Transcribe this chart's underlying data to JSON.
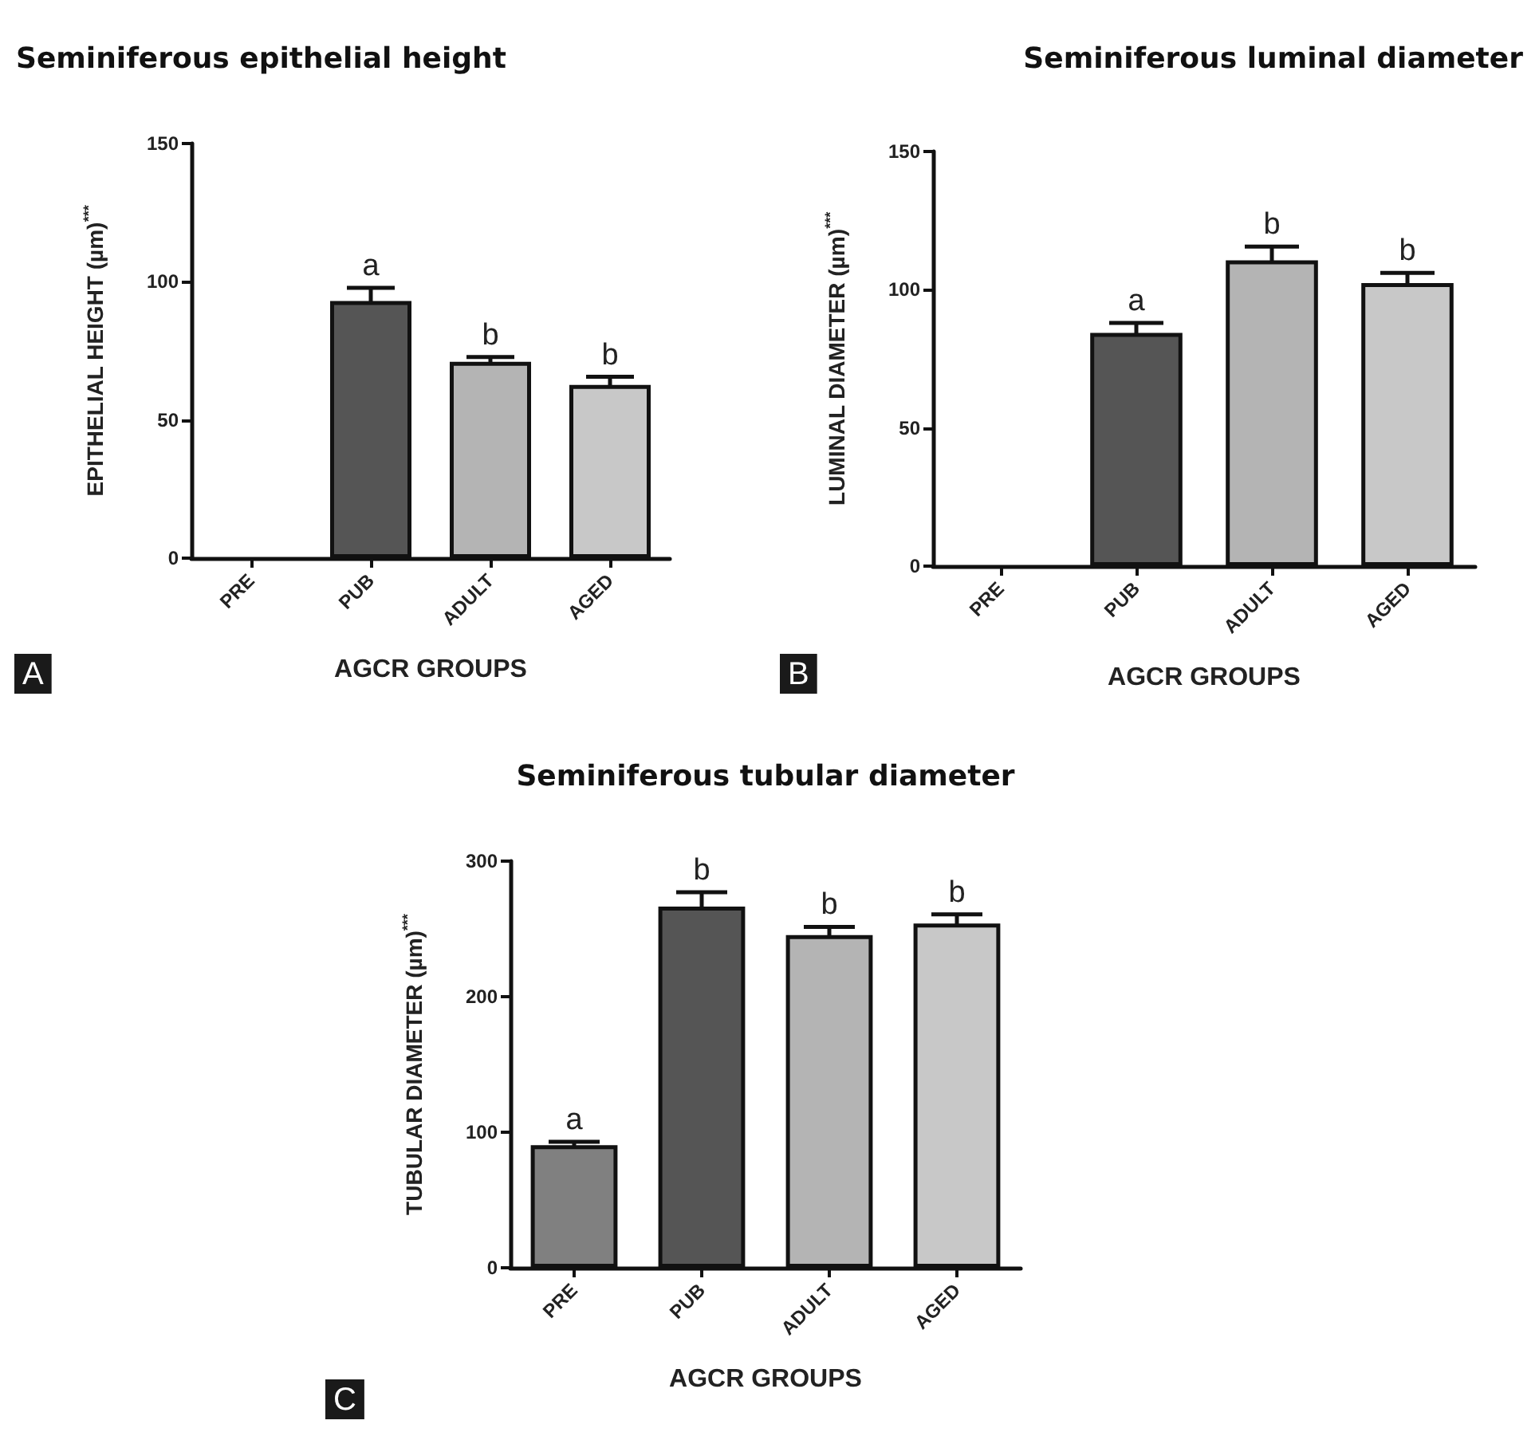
{
  "chart_data": [
    {
      "type": "bar",
      "title": "Seminiferous epithelial height",
      "xlabel": "AGCR GROUPS",
      "ylabel": "EPITHELIAL HEIGHT (µm)$^{***}$",
      "categories": [
        "PRE",
        "PUB",
        "ADULT",
        "AGED"
      ],
      "values": [
        null,
        93,
        71,
        62.7
      ],
      "errors": [
        null,
        4.8,
        1.8,
        2.9
      ],
      "colors": [
        "#808080",
        "#555555",
        "#b4b4b4",
        "#c8c8c8"
      ],
      "ylim": [
        0,
        150
      ],
      "yticks": [
        0,
        50,
        100,
        150
      ],
      "annotations": [
        {
          "text": "a",
          "x": "PUB",
          "y": 97.8
        },
        {
          "text": "b",
          "x": "ADULT",
          "y": 72.8
        },
        {
          "text": "b",
          "x": "AGED",
          "y": 65.6
        },
        "A"
      ]
    },
    {
      "type": "bar",
      "title": "Seminiferous luminal diameter",
      "xlabel": "AGCR GROUPS",
      "ylabel": "LUMINAL DIAMETER (µm)$^{***}$",
      "categories": [
        "PRE",
        "PUB",
        "ADULT",
        "AGED"
      ],
      "values": [
        null,
        84.4,
        110.6,
        102.4
      ],
      "errors": [
        null,
        3.6,
        5,
        3.7
      ],
      "colors": [
        "#808080",
        "#555555",
        "#b4b4b4",
        "#c8c8c8"
      ],
      "ylim": [
        0,
        150
      ],
      "yticks": [
        0,
        50,
        100,
        150
      ],
      "annotations": [
        {
          "text": "a",
          "x": "PUB",
          "y": 88
        },
        {
          "text": "b",
          "x": "ADULT",
          "y": 115.6
        },
        {
          "text": "b",
          "x": "AGED",
          "y": 106.1
        },
        "B"
      ]
    },
    {
      "type": "bar",
      "title": "Seminiferous tubular diameter",
      "xlabel": "AGCR GROUPS",
      "ylabel": "TUBULAR DIAMETER (µm)$^{***}$",
      "categories": [
        "PRE",
        "PUB",
        "ADULT",
        "AGED"
      ],
      "values": [
        90.4,
        266.5,
        245.4,
        254
      ],
      "errors": [
        2.6,
        10.5,
        6.1,
        6.8
      ],
      "colors": [
        "#808080",
        "#555555",
        "#b4b4b4",
        "#c8c8c8"
      ],
      "ylim": [
        0,
        300
      ],
      "yticks": [
        0,
        100,
        200,
        300
      ],
      "annotations": [
        {
          "text": "a",
          "x": "PRE",
          "y": 93
        },
        {
          "text": "b",
          "x": "PUB",
          "y": 277
        },
        {
          "text": "b",
          "x": "ADULT",
          "y": 251.5
        },
        {
          "text": "b",
          "x": "AGED",
          "y": 260.8
        },
        "C"
      ]
    }
  ]
}
